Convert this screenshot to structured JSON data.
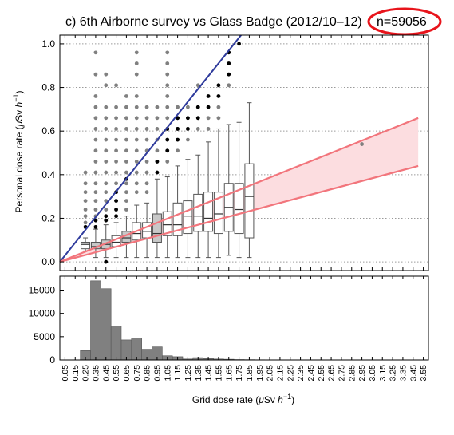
{
  "title": "c) 6th Airborne survey vs Glass Badge (2012/10–12)",
  "n_label": "n=59056",
  "colors": {
    "accent_circle": "#e8141b",
    "blue_line": "#2e3a9c",
    "red_line": "#f2757c",
    "band_fill": "#fcdde0",
    "box_fill_light": "#ffffff",
    "box_fill_dark": "#c8c8c8",
    "hist_bar": "#808080",
    "outlier_gray": "#808080",
    "outlier_black": "#000000"
  },
  "chart_data": [
    {
      "type": "box",
      "ylabel": "Personal dose rate (μSv h−1)",
      "ylabel_parts": {
        "main": "Personal dose rate (",
        "mu": "μ",
        "unit": "Sv ",
        "h": "h",
        "exp": "−1",
        "close": ")"
      },
      "xlim": [
        0,
        3.6
      ],
      "ylim": [
        -0.04,
        1.04
      ],
      "yticks": [
        0.0,
        0.2,
        0.4,
        0.6,
        0.8,
        1.0
      ],
      "ytick_labels": [
        "0.0",
        "0.2",
        "0.4",
        "0.6",
        "0.8",
        "1.0"
      ],
      "grid": "horizontal-dotted",
      "boxes": [
        {
          "x": 0.25,
          "q1": 0.06,
          "med": 0.08,
          "q3": 0.09,
          "lo": 0.05,
          "hi": 0.11,
          "dark": false
        },
        {
          "x": 0.35,
          "q1": 0.06,
          "med": 0.07,
          "q3": 0.09,
          "lo": 0.02,
          "hi": 0.15,
          "dark": true
        },
        {
          "x": 0.45,
          "q1": 0.06,
          "med": 0.08,
          "q3": 0.1,
          "lo": 0.02,
          "hi": 0.17,
          "dark": true
        },
        {
          "x": 0.55,
          "q1": 0.07,
          "med": 0.09,
          "q3": 0.12,
          "lo": 0.02,
          "hi": 0.18,
          "dark": false
        },
        {
          "x": 0.65,
          "q1": 0.09,
          "med": 0.11,
          "q3": 0.14,
          "lo": 0.02,
          "hi": 0.21,
          "dark": true
        },
        {
          "x": 0.75,
          "q1": 0.1,
          "med": 0.13,
          "q3": 0.18,
          "lo": 0.02,
          "hi": 0.26,
          "dark": false
        },
        {
          "x": 0.85,
          "q1": 0.11,
          "med": 0.14,
          "q3": 0.18,
          "lo": 0.02,
          "hi": 0.27,
          "dark": false
        },
        {
          "x": 0.95,
          "q1": 0.09,
          "med": 0.13,
          "q3": 0.22,
          "lo": 0.02,
          "hi": 0.38,
          "dark": true
        },
        {
          "x": 1.05,
          "q1": 0.12,
          "med": 0.17,
          "q3": 0.23,
          "lo": 0.02,
          "hi": 0.39,
          "dark": false
        },
        {
          "x": 1.15,
          "q1": 0.12,
          "med": 0.17,
          "q3": 0.27,
          "lo": 0.02,
          "hi": 0.44,
          "dark": false
        },
        {
          "x": 1.25,
          "q1": 0.13,
          "med": 0.21,
          "q3": 0.28,
          "lo": 0.02,
          "hi": 0.47,
          "dark": false
        },
        {
          "x": 1.35,
          "q1": 0.14,
          "med": 0.21,
          "q3": 0.31,
          "lo": 0.02,
          "hi": 0.49,
          "dark": false
        },
        {
          "x": 1.45,
          "q1": 0.14,
          "med": 0.2,
          "q3": 0.32,
          "lo": 0.02,
          "hi": 0.55,
          "dark": false
        },
        {
          "x": 1.55,
          "q1": 0.13,
          "med": 0.22,
          "q3": 0.32,
          "lo": 0.02,
          "hi": 0.61,
          "dark": false
        },
        {
          "x": 1.65,
          "q1": 0.14,
          "med": 0.25,
          "q3": 0.36,
          "lo": 0.03,
          "hi": 0.63,
          "dark": false
        },
        {
          "x": 1.75,
          "q1": 0.13,
          "med": 0.24,
          "q3": 0.36,
          "lo": 0.02,
          "hi": 0.64,
          "dark": false
        },
        {
          "x": 1.85,
          "q1": 0.11,
          "med": 0.3,
          "q3": 0.45,
          "lo": 0.02,
          "hi": 0.73,
          "dark": false
        }
      ],
      "outliers_gray": [
        [
          0.25,
          0.18
        ],
        [
          0.25,
          0.21
        ],
        [
          0.25,
          0.24
        ],
        [
          0.25,
          0.28
        ],
        [
          0.25,
          0.32
        ],
        [
          0.25,
          0.36
        ],
        [
          0.25,
          0.41
        ],
        [
          0.35,
          0.21
        ],
        [
          0.35,
          0.24
        ],
        [
          0.35,
          0.28
        ],
        [
          0.35,
          0.32
        ],
        [
          0.35,
          0.36
        ],
        [
          0.35,
          0.41
        ],
        [
          0.35,
          0.46
        ],
        [
          0.35,
          0.51
        ],
        [
          0.35,
          0.56
        ],
        [
          0.35,
          0.61
        ],
        [
          0.35,
          0.66
        ],
        [
          0.35,
          0.71
        ],
        [
          0.35,
          0.76
        ],
        [
          0.35,
          0.86
        ],
        [
          0.35,
          0.96
        ],
        [
          0.45,
          0.21
        ],
        [
          0.45,
          0.24
        ],
        [
          0.45,
          0.28
        ],
        [
          0.45,
          0.32
        ],
        [
          0.45,
          0.36
        ],
        [
          0.45,
          0.41
        ],
        [
          0.45,
          0.46
        ],
        [
          0.45,
          0.51
        ],
        [
          0.45,
          0.56
        ],
        [
          0.45,
          0.61
        ],
        [
          0.45,
          0.66
        ],
        [
          0.45,
          0.71
        ],
        [
          0.45,
          0.81
        ],
        [
          0.45,
          0.86
        ],
        [
          0.55,
          0.21
        ],
        [
          0.55,
          0.24
        ],
        [
          0.55,
          0.28
        ],
        [
          0.55,
          0.32
        ],
        [
          0.55,
          0.36
        ],
        [
          0.55,
          0.41
        ],
        [
          0.55,
          0.46
        ],
        [
          0.55,
          0.51
        ],
        [
          0.55,
          0.56
        ],
        [
          0.55,
          0.61
        ],
        [
          0.55,
          0.66
        ],
        [
          0.55,
          0.71
        ],
        [
          0.55,
          0.81
        ],
        [
          0.65,
          0.24
        ],
        [
          0.65,
          0.28
        ],
        [
          0.65,
          0.32
        ],
        [
          0.65,
          0.36
        ],
        [
          0.65,
          0.41
        ],
        [
          0.65,
          0.46
        ],
        [
          0.65,
          0.51
        ],
        [
          0.65,
          0.56
        ],
        [
          0.65,
          0.61
        ],
        [
          0.65,
          0.66
        ],
        [
          0.65,
          0.71
        ],
        [
          0.65,
          0.76
        ],
        [
          0.75,
          0.32
        ],
        [
          0.75,
          0.36
        ],
        [
          0.75,
          0.41
        ],
        [
          0.75,
          0.46
        ],
        [
          0.75,
          0.51
        ],
        [
          0.75,
          0.56
        ],
        [
          0.75,
          0.61
        ],
        [
          0.75,
          0.66
        ],
        [
          0.75,
          0.71
        ],
        [
          0.75,
          0.76
        ],
        [
          0.75,
          0.86
        ],
        [
          0.75,
          0.91
        ],
        [
          0.75,
          0.96
        ],
        [
          0.85,
          0.32
        ],
        [
          0.85,
          0.36
        ],
        [
          0.85,
          0.41
        ],
        [
          0.85,
          0.46
        ],
        [
          0.85,
          0.51
        ],
        [
          0.85,
          0.56
        ],
        [
          0.85,
          0.61
        ],
        [
          0.85,
          0.66
        ],
        [
          0.85,
          0.71
        ],
        [
          0.95,
          0.46
        ],
        [
          0.95,
          0.51
        ],
        [
          0.95,
          0.56
        ],
        [
          0.95,
          0.61
        ],
        [
          0.95,
          0.66
        ],
        [
          0.95,
          0.71
        ],
        [
          1.05,
          0.46
        ],
        [
          1.05,
          0.51
        ],
        [
          1.05,
          0.56
        ],
        [
          1.05,
          0.61
        ],
        [
          1.05,
          0.66
        ],
        [
          1.05,
          0.71
        ],
        [
          1.05,
          0.76
        ],
        [
          1.05,
          0.81
        ],
        [
          1.05,
          0.86
        ],
        [
          1.05,
          0.91
        ],
        [
          1.05,
          0.96
        ],
        [
          1.15,
          0.51
        ],
        [
          1.15,
          0.56
        ],
        [
          1.15,
          0.61
        ],
        [
          1.15,
          0.66
        ],
        [
          1.15,
          0.71
        ],
        [
          1.25,
          0.56
        ],
        [
          1.25,
          0.61
        ],
        [
          1.25,
          0.66
        ],
        [
          1.25,
          0.71
        ],
        [
          1.35,
          0.61
        ],
        [
          1.35,
          0.66
        ],
        [
          1.35,
          0.71
        ],
        [
          1.35,
          0.81
        ],
        [
          1.45,
          0.61
        ],
        [
          1.45,
          0.66
        ],
        [
          1.55,
          0.66
        ],
        [
          1.55,
          0.71
        ],
        [
          1.65,
          0.81
        ],
        [
          2.95,
          0.54
        ]
      ],
      "outliers_black": [
        [
          0.25,
          0.16
        ],
        [
          0.35,
          0.16
        ],
        [
          0.35,
          0.19
        ],
        [
          0.45,
          0.0
        ],
        [
          0.45,
          0.19
        ],
        [
          0.45,
          0.21
        ],
        [
          0.55,
          0.21
        ],
        [
          0.55,
          0.24
        ],
        [
          0.55,
          0.28
        ],
        [
          0.55,
          0.32
        ],
        [
          0.65,
          0.38
        ],
        [
          0.95,
          0.41
        ],
        [
          0.95,
          0.46
        ],
        [
          1.05,
          0.51
        ],
        [
          1.05,
          0.56
        ],
        [
          1.05,
          0.61
        ],
        [
          1.15,
          0.56
        ],
        [
          1.15,
          0.61
        ],
        [
          1.15,
          0.66
        ],
        [
          1.25,
          0.61
        ],
        [
          1.25,
          0.66
        ],
        [
          1.35,
          0.66
        ],
        [
          1.35,
          0.71
        ],
        [
          1.45,
          0.71
        ],
        [
          1.45,
          0.76
        ],
        [
          1.55,
          0.76
        ],
        [
          1.55,
          0.81
        ],
        [
          1.65,
          0.86
        ],
        [
          1.65,
          0.91
        ],
        [
          1.65,
          0.96
        ],
        [
          1.75,
          1.0
        ]
      ],
      "lines": [
        {
          "name": "",
          "x": [
            0.0,
            1.77
          ],
          "y": [
            0.0,
            1.04
          ]
        },
        {
          "name": "",
          "x": [
            0.0,
            3.5
          ],
          "y": [
            0.0,
            0.66
          ]
        },
        {
          "name": "",
          "x": [
            0.0,
            3.5
          ],
          "y": [
            0.0,
            0.44
          ]
        }
      ]
    },
    {
      "type": "bar",
      "xlabel": "Grid dose rate (μSv h−1)",
      "xlabel_parts": {
        "main": "Grid dose rate (",
        "mu": "μ",
        "unit": "Sv ",
        "h": "h",
        "exp": "−1",
        "close": ")"
      },
      "ylim": [
        0,
        18000
      ],
      "yticks": [
        0,
        5000,
        10000,
        15000
      ],
      "ytick_labels": [
        "0",
        "5000",
        "10000",
        "15000"
      ],
      "categories": [
        "0.05",
        "0.15",
        "0.25",
        "0.35",
        "0.45",
        "0.55",
        "0.65",
        "0.75",
        "0.85",
        "0.95",
        "1.05",
        "1.15",
        "1.25",
        "1.35",
        "1.45",
        "1.55",
        "1.65",
        "1.75",
        "1.85",
        "1.95",
        "2.05",
        "2.15",
        "2.25",
        "2.35",
        "2.45",
        "2.55",
        "2.65",
        "2.75",
        "2.85",
        "2.95",
        "3.05",
        "3.15",
        "3.25",
        "3.35",
        "3.45",
        "3.55"
      ],
      "values": [
        0,
        0,
        2000,
        17000,
        15300,
        7300,
        4300,
        4700,
        2300,
        2800,
        900,
        700,
        200,
        500,
        300,
        200,
        150,
        80,
        60,
        40,
        30,
        20,
        15,
        10,
        10,
        8,
        6,
        5,
        5,
        5,
        4,
        3,
        3,
        2,
        2,
        2
      ]
    }
  ]
}
